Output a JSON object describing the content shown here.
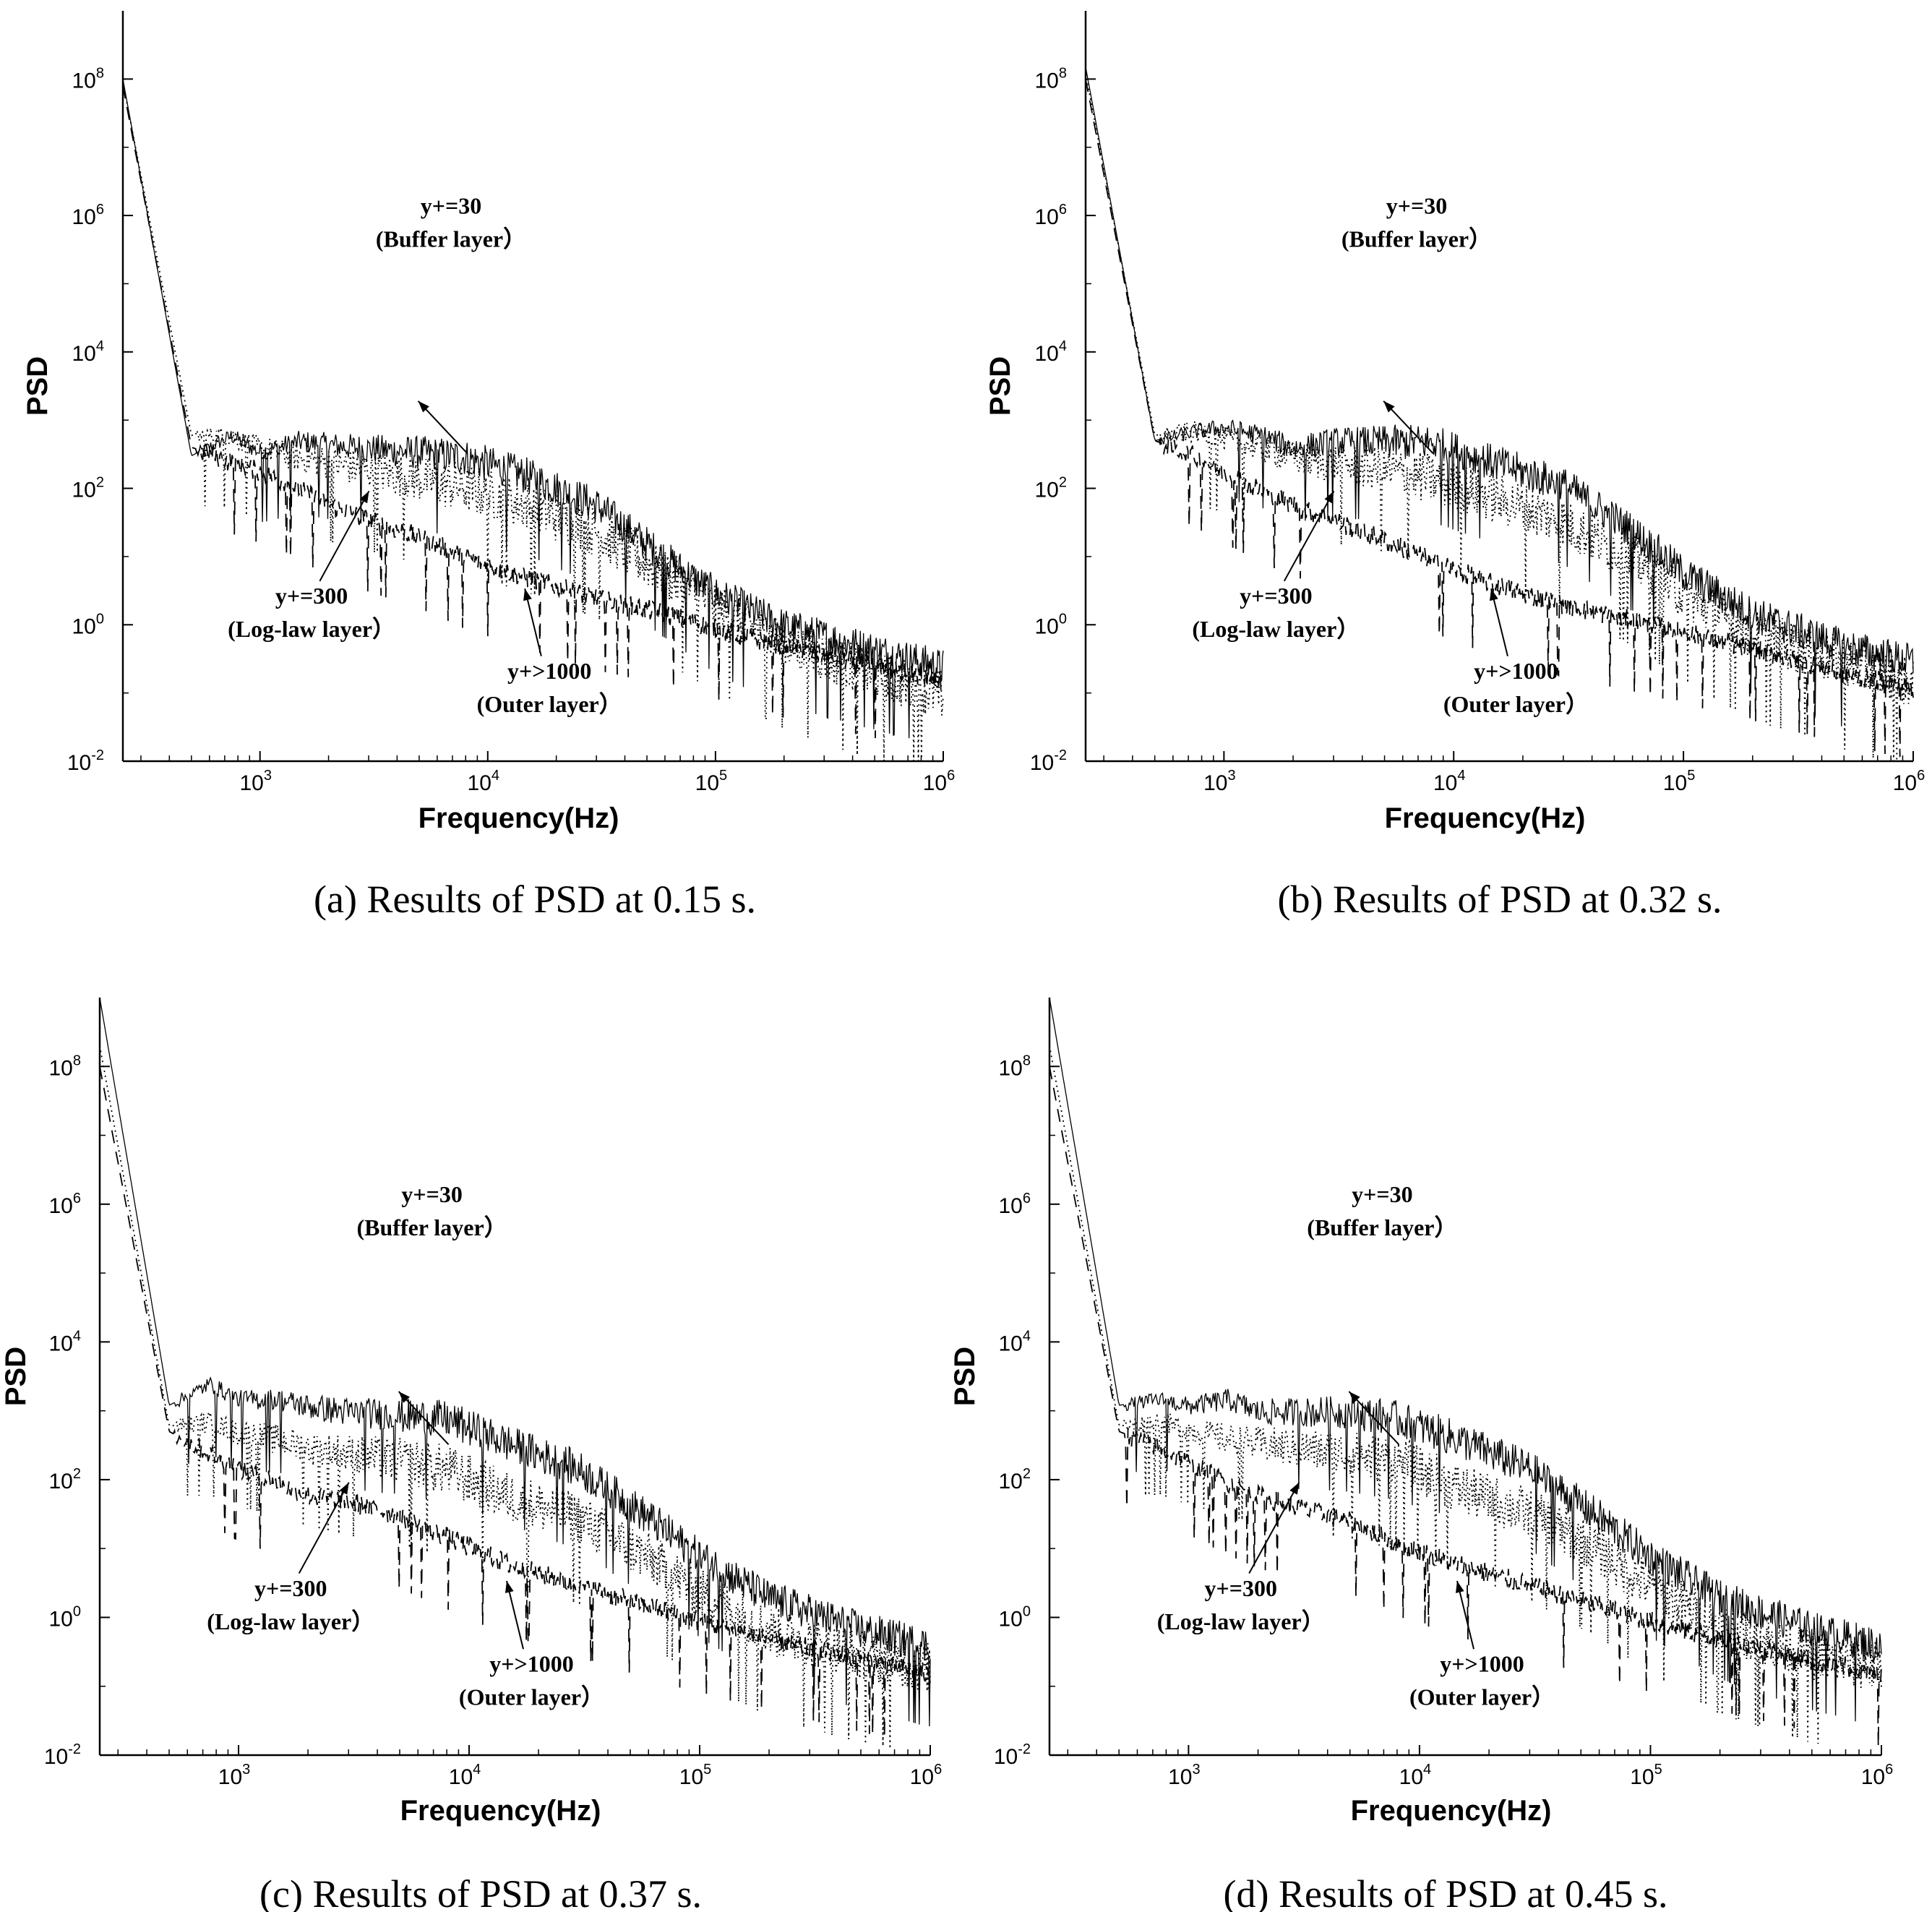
{
  "figure": {
    "line_color": "#000000",
    "background": "#ffffff"
  },
  "chart_data": [
    {
      "id": "a",
      "type": "line",
      "caption_label": "(a)",
      "caption_text": "Results of PSD at 0.15 s.",
      "xlabel": "Frequency(Hz)",
      "ylabel": "PSD",
      "xscale": "log",
      "yscale": "log",
      "xlim": [
        250,
        1000000
      ],
      "ylim": [
        0.01,
        1000000000
      ],
      "x_ticks": [
        {
          "base": "10",
          "exp": "3"
        },
        {
          "base": "10",
          "exp": "4"
        },
        {
          "base": "10",
          "exp": "5"
        },
        {
          "base": "10",
          "exp": "6"
        }
      ],
      "y_ticks": [
        {
          "base": "10",
          "exp": "-2"
        },
        {
          "base": "10",
          "exp": "0"
        },
        {
          "base": "10",
          "exp": "2"
        },
        {
          "base": "10",
          "exp": "4"
        },
        {
          "base": "10",
          "exp": "6"
        },
        {
          "base": "10",
          "exp": "8"
        }
      ],
      "series": [
        {
          "name": "y+=30 (Buffer layer)",
          "style": "solid",
          "x": [
            250,
            500,
            750,
            1000,
            1500,
            2000,
            3000,
            5000,
            8000,
            15000,
            30000,
            60000,
            100000,
            200000,
            500000,
            1000000
          ],
          "y": [
            100000000,
            300,
            600,
            350,
            500,
            450,
            400,
            350,
            300,
            160,
            60,
            10,
            3,
            1,
            0.45,
            0.25
          ]
        },
        {
          "name": "y+=300 (Log-law layer)",
          "style": "dotted",
          "x": [
            250,
            500,
            750,
            1000,
            1500,
            2000,
            3000,
            5000,
            8000,
            15000,
            30000,
            60000,
            100000,
            200000,
            500000,
            1000000
          ],
          "y": [
            90000000,
            600,
            600,
            400,
            300,
            250,
            200,
            150,
            110,
            60,
            25,
            6,
            2,
            0.6,
            0.2,
            0.1
          ]
        },
        {
          "name": "y+>1000 (Outer layer)",
          "style": "dashed",
          "x": [
            250,
            500,
            750,
            1000,
            1500,
            2000,
            3000,
            5000,
            8000,
            15000,
            30000,
            60000,
            100000,
            200000,
            500000,
            1000000
          ],
          "y": [
            80000000,
            400,
            250,
            180,
            100,
            60,
            35,
            20,
            10,
            5,
            2.5,
            1.5,
            0.9,
            0.5,
            0.25,
            0.15
          ]
        }
      ],
      "annotations": [
        {
          "lines": [
            "y+=30",
            "(Buffer layer）"
          ]
        },
        {
          "lines": [
            "y+=300",
            "(Log-law layer）"
          ]
        },
        {
          "lines": [
            "y+>1000",
            "(Outer layer）"
          ]
        }
      ]
    },
    {
      "id": "b",
      "type": "line",
      "caption_label": "(b)",
      "caption_text": "Results of PSD at 0.32 s.",
      "xlabel": "Frequency(Hz)",
      "ylabel": "PSD",
      "xscale": "log",
      "yscale": "log",
      "xlim": [
        250,
        1000000
      ],
      "ylim": [
        0.01,
        1000000000
      ],
      "x_ticks": [
        {
          "base": "10",
          "exp": "3"
        },
        {
          "base": "10",
          "exp": "4"
        },
        {
          "base": "10",
          "exp": "5"
        },
        {
          "base": "10",
          "exp": "6"
        }
      ],
      "y_ticks": [
        {
          "base": "10",
          "exp": "-2"
        },
        {
          "base": "10",
          "exp": "0"
        },
        {
          "base": "10",
          "exp": "2"
        },
        {
          "base": "10",
          "exp": "4"
        },
        {
          "base": "10",
          "exp": "6"
        },
        {
          "base": "10",
          "exp": "8"
        }
      ],
      "series": [
        {
          "name": "y+=30 (Buffer layer)",
          "style": "solid",
          "x": [
            250,
            500,
            750,
            1000,
            1500,
            2000,
            3000,
            5000,
            8000,
            15000,
            30000,
            60000,
            100000,
            200000,
            500000,
            1000000
          ],
          "y": [
            150000000,
            500,
            700,
            800,
            600,
            400,
            500,
            500,
            500,
            250,
            120,
            25,
            6,
            1.5,
            0.5,
            0.3
          ]
        },
        {
          "name": "y+=300 (Log-law layer)",
          "style": "dotted",
          "x": [
            250,
            500,
            750,
            1000,
            1500,
            2000,
            3000,
            5000,
            8000,
            15000,
            30000,
            60000,
            100000,
            200000,
            500000,
            1000000
          ],
          "y": [
            120000000,
            600,
            700,
            550,
            400,
            300,
            250,
            200,
            150,
            80,
            35,
            10,
            3,
            0.8,
            0.3,
            0.15
          ]
        },
        {
          "name": "y+>1000 (Outer layer)",
          "style": "dashed",
          "x": [
            250,
            500,
            750,
            1000,
            1500,
            2000,
            3000,
            5000,
            8000,
            15000,
            30000,
            60000,
            100000,
            200000,
            500000,
            1000000
          ],
          "y": [
            100000000,
            500,
            300,
            180,
            90,
            60,
            35,
            18,
            9,
            4,
            2,
            1.2,
            0.8,
            0.45,
            0.2,
            0.12
          ]
        }
      ],
      "annotations": [
        {
          "lines": [
            "y+=30",
            "(Buffer layer）"
          ]
        },
        {
          "lines": [
            "y+=300",
            "(Log-law layer）"
          ]
        },
        {
          "lines": [
            "y+>1000",
            "(Outer layer）"
          ]
        }
      ]
    },
    {
      "id": "c",
      "type": "line",
      "caption_label": "(c)",
      "caption_text": "Results of PSD at 0.37 s.",
      "xlabel": "Frequency(Hz)",
      "ylabel": "PSD",
      "xscale": "log",
      "yscale": "log",
      "xlim": [
        250,
        1000000
      ],
      "ylim": [
        0.01,
        1000000000
      ],
      "x_ticks": [
        {
          "base": "10",
          "exp": "3"
        },
        {
          "base": "10",
          "exp": "4"
        },
        {
          "base": "10",
          "exp": "5"
        },
        {
          "base": "10",
          "exp": "6"
        }
      ],
      "y_ticks": [
        {
          "base": "10",
          "exp": "-2"
        },
        {
          "base": "10",
          "exp": "0"
        },
        {
          "base": "10",
          "exp": "2"
        },
        {
          "base": "10",
          "exp": "4"
        },
        {
          "base": "10",
          "exp": "6"
        },
        {
          "base": "10",
          "exp": "8"
        }
      ],
      "series": [
        {
          "name": "y+=30 (Buffer layer)",
          "style": "solid",
          "x": [
            250,
            500,
            750,
            1000,
            1500,
            2000,
            3000,
            5000,
            8000,
            15000,
            30000,
            60000,
            100000,
            200000,
            500000,
            1000000
          ],
          "y": [
            1000000000,
            1200,
            2500,
            1500,
            1500,
            1200,
            1000,
            900,
            800,
            350,
            150,
            30,
            8,
            2,
            0.7,
            0.4
          ]
        },
        {
          "name": "y+=300 (Log-law layer)",
          "style": "dotted",
          "x": [
            250,
            500,
            750,
            1000,
            1500,
            2000,
            3000,
            5000,
            8000,
            15000,
            30000,
            60000,
            100000,
            200000,
            500000,
            1000000
          ],
          "y": [
            200000000,
            600,
            700,
            500,
            400,
            300,
            250,
            200,
            150,
            60,
            30,
            8,
            2.5,
            0.7,
            0.3,
            0.2
          ]
        },
        {
          "name": "y+>1000 (Outer layer)",
          "style": "dashed",
          "x": [
            250,
            500,
            750,
            1000,
            1500,
            2000,
            3000,
            5000,
            8000,
            15000,
            30000,
            60000,
            100000,
            200000,
            500000,
            1000000
          ],
          "y": [
            100000000,
            500,
            250,
            150,
            90,
            60,
            50,
            30,
            15,
            6,
            3,
            1.5,
            0.9,
            0.5,
            0.25,
            0.15
          ]
        }
      ],
      "annotations": [
        {
          "lines": [
            "y+=30",
            "(Buffer layer）"
          ]
        },
        {
          "lines": [
            "y+=300",
            "(Log-law layer）"
          ]
        },
        {
          "lines": [
            "y+>1000",
            "(Outer layer）"
          ]
        }
      ]
    },
    {
      "id": "d",
      "type": "line",
      "caption_label": "(d)",
      "caption_text": "Results of PSD at 0.45 s.",
      "xlabel": "Frequency(Hz)",
      "ylabel": "PSD",
      "xscale": "log",
      "yscale": "log",
      "xlim": [
        250,
        1000000
      ],
      "ylim": [
        0.01,
        1000000000
      ],
      "x_ticks": [
        {
          "base": "10",
          "exp": "3"
        },
        {
          "base": "10",
          "exp": "4"
        },
        {
          "base": "10",
          "exp": "5"
        },
        {
          "base": "10",
          "exp": "6"
        }
      ],
      "y_ticks": [
        {
          "base": "10",
          "exp": "-2"
        },
        {
          "base": "10",
          "exp": "0"
        },
        {
          "base": "10",
          "exp": "2"
        },
        {
          "base": "10",
          "exp": "4"
        },
        {
          "base": "10",
          "exp": "6"
        },
        {
          "base": "10",
          "exp": "8"
        }
      ],
      "series": [
        {
          "name": "y+=30 (Buffer layer)",
          "style": "solid",
          "x": [
            250,
            500,
            750,
            1000,
            1500,
            2000,
            3000,
            5000,
            8000,
            15000,
            30000,
            60000,
            100000,
            200000,
            500000,
            1000000
          ],
          "y": [
            1000000000,
            1200,
            1500,
            1200,
            1500,
            1000,
            1000,
            1000,
            800,
            400,
            150,
            30,
            8,
            2,
            0.7,
            0.4
          ]
        },
        {
          "name": "y+=300 (Log-law layer)",
          "style": "dotted",
          "x": [
            250,
            500,
            750,
            1000,
            1500,
            2000,
            3000,
            5000,
            8000,
            15000,
            30000,
            60000,
            100000,
            200000,
            500000,
            1000000
          ],
          "y": [
            200000000,
            600,
            700,
            550,
            400,
            350,
            300,
            250,
            200,
            80,
            35,
            10,
            3,
            0.8,
            0.3,
            0.2
          ]
        },
        {
          "name": "y+>1000 (Outer layer)",
          "style": "dashed",
          "x": [
            250,
            500,
            750,
            1000,
            1500,
            2000,
            3000,
            5000,
            8000,
            15000,
            30000,
            60000,
            100000,
            200000,
            500000,
            1000000
          ],
          "y": [
            100000000,
            500,
            300,
            180,
            90,
            60,
            40,
            25,
            12,
            6,
            3,
            1.5,
            0.9,
            0.5,
            0.25,
            0.15
          ]
        }
      ],
      "annotations": [
        {
          "lines": [
            "y+=30",
            "(Buffer layer）"
          ]
        },
        {
          "lines": [
            "y+=300",
            "(Log-law layer）"
          ]
        },
        {
          "lines": [
            "y+>1000",
            "(Outer layer）"
          ]
        }
      ]
    }
  ]
}
